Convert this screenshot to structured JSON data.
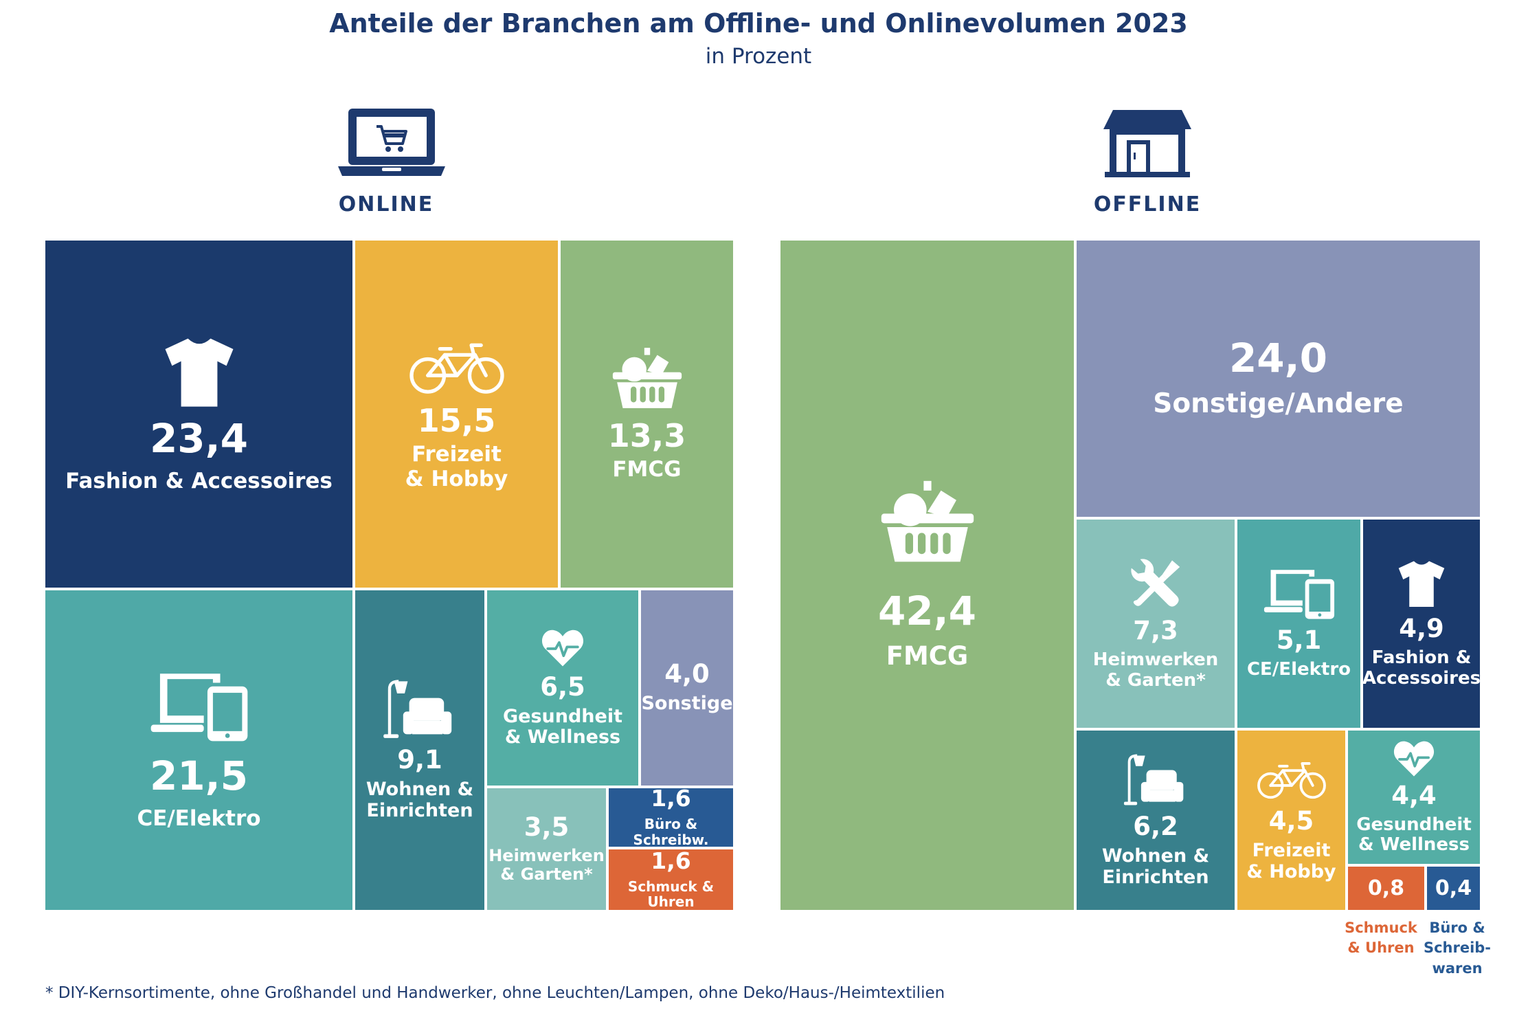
{
  "title": "Anteile der Branchen am Offline- und Onlinevolumen 2023",
  "subtitle": "in Prozent",
  "online_label": "ONLINE",
  "offline_label": "OFFLINE",
  "footnote": "* DIY-Kernsortimente, ohne Großhandel und Handwerker, ohne Leuchten/Lampen, ohne Deko/Haus-/Heimtextilien",
  "colors": {
    "fashion": "#1b3a6c",
    "freizeit": "#edb33f",
    "fmcg": "#90b97e",
    "ce": "#4fa9a7",
    "wohnen": "#38808c",
    "gesundheit": "#54aea5",
    "sonstige": "#8893b7",
    "heimwerken": "#88c1ba",
    "buero": "#285a94",
    "schmuck": "#dd6637"
  },
  "chart_data": [
    {
      "type": "treemap",
      "name": "ONLINE",
      "unit": "Prozent",
      "segments": [
        {
          "value": "23,4",
          "number": 23.4,
          "label": "Fashion & Accessoires",
          "color": "fashion",
          "icon": "tshirt-icon"
        },
        {
          "value": "15,5",
          "number": 15.5,
          "label": "Freizeit\n& Hobby",
          "color": "freizeit",
          "icon": "bicycle-icon"
        },
        {
          "value": "13,3",
          "number": 13.3,
          "label": "FMCG",
          "color": "fmcg",
          "icon": "shopping-basket-icon"
        },
        {
          "value": "21,5",
          "number": 21.5,
          "label": "CE/Elektro",
          "color": "ce",
          "icon": "laptop-tablet-icon"
        },
        {
          "value": "9,1",
          "number": 9.1,
          "label": "Wohnen &\nEinrichten",
          "color": "wohnen",
          "icon": "sofa-lamp-icon"
        },
        {
          "value": "6,5",
          "number": 6.5,
          "label": "Gesundheit\n& Wellness",
          "color": "gesundheit",
          "icon": "heart-pulse-icon"
        },
        {
          "value": "4,0",
          "number": 4.0,
          "label": "Sonstige",
          "color": "sonstige",
          "icon": ""
        },
        {
          "value": "3,5",
          "number": 3.5,
          "label": "Heimwerken\n& Garten*",
          "color": "heimwerken",
          "icon": ""
        },
        {
          "value": "1,6",
          "number": 1.6,
          "label": "Büro & Schreibw.",
          "color": "buero",
          "icon": ""
        },
        {
          "value": "1,6",
          "number": 1.6,
          "label": "Schmuck & Uhren",
          "color": "schmuck",
          "icon": ""
        }
      ]
    },
    {
      "type": "treemap",
      "name": "OFFLINE",
      "unit": "Prozent",
      "segments": [
        {
          "value": "42,4",
          "number": 42.4,
          "label": "FMCG",
          "color": "fmcg",
          "icon": "shopping-basket-icon"
        },
        {
          "value": "24,0",
          "number": 24.0,
          "label": "Sonstige/Andere",
          "color": "sonstige",
          "icon": ""
        },
        {
          "value": "7,3",
          "number": 7.3,
          "label": "Heimwerken\n& Garten*",
          "color": "heimwerken",
          "icon": "tools-icon"
        },
        {
          "value": "5,1",
          "number": 5.1,
          "label": "CE/Elektro",
          "color": "ce",
          "icon": "laptop-tablet-icon"
        },
        {
          "value": "4,9",
          "number": 4.9,
          "label": "Fashion &\nAccessoires",
          "color": "fashion",
          "icon": "tshirt-icon"
        },
        {
          "value": "6,2",
          "number": 6.2,
          "label": "Wohnen &\nEinrichten",
          "color": "wohnen",
          "icon": "sofa-lamp-icon"
        },
        {
          "value": "4,5",
          "number": 4.5,
          "label": "Freizeit\n& Hobby",
          "color": "freizeit",
          "icon": "bicycle-icon"
        },
        {
          "value": "4,4",
          "number": 4.4,
          "label": "Gesundheit\n& Wellness",
          "color": "gesundheit",
          "icon": "heart-pulse-icon"
        },
        {
          "value": "0,8",
          "number": 0.8,
          "label": "Schmuck\n& Uhren",
          "color": "schmuck",
          "icon": ""
        },
        {
          "value": "0,4",
          "number": 0.4,
          "label": "Büro &\nSchreib-\nwaren",
          "color": "buero",
          "icon": ""
        }
      ]
    }
  ]
}
